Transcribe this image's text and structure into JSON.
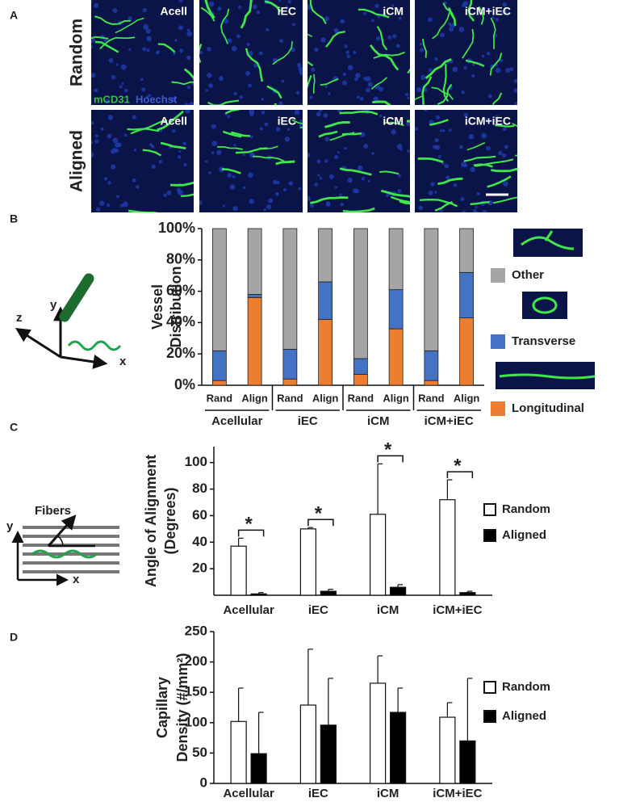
{
  "panel_labels": [
    "A",
    "B",
    "C",
    "D"
  ],
  "images": {
    "row_labels": [
      "Random",
      "Aligned"
    ],
    "column_labels": [
      "Acell",
      "iEC",
      "iCM",
      "iCM+iEC"
    ],
    "stain": [
      "mCD31",
      "Hoechst"
    ]
  },
  "diagrams": {
    "b_axes": [
      "x",
      "y",
      "z"
    ],
    "c_fibers": "Fibers",
    "c_axes": [
      "x",
      "y"
    ]
  },
  "chart_data": [
    {
      "type": "stacked_bar",
      "y_label": [
        "Vessel",
        "Distribution"
      ],
      "categories": [
        "Rand",
        "Align",
        "Rand",
        "Align",
        "Rand",
        "Align",
        "Rand",
        "Align"
      ],
      "groups": [
        "Acellular",
        "iEC",
        "iCM",
        "iCM+iEC"
      ],
      "series": [
        {
          "name": "Longitudinal",
          "color": "#ed7d31",
          "values": [
            3,
            56,
            4,
            42,
            7,
            36,
            3,
            43
          ]
        },
        {
          "name": "Transverse",
          "color": "#4472c4",
          "values": [
            19,
            2,
            19,
            24,
            10,
            25,
            19,
            29
          ]
        },
        {
          "name": "Other",
          "color": "#a5a5a5",
          "values": [
            78,
            42,
            77,
            34,
            83,
            39,
            78,
            28
          ]
        }
      ],
      "ylim": [
        0,
        100
      ],
      "yticks": [
        {
          "value": 0,
          "label": "0%"
        },
        {
          "value": 20,
          "label": "20%"
        },
        {
          "value": 40,
          "label": "40%"
        },
        {
          "value": 60,
          "label": "60%"
        },
        {
          "value": 80,
          "label": "80%"
        },
        {
          "value": 100,
          "label": "100%"
        }
      ]
    },
    {
      "type": "grouped_bar",
      "y_label": [
        "Angle of Alignment",
        "(Degrees)"
      ],
      "categories": [
        "Acellular",
        "iEC",
        "iCM",
        "iCM+iEC"
      ],
      "series": [
        {
          "name": "Random",
          "color": "#ffffff",
          "values": [
            37,
            50,
            61,
            72
          ],
          "errors": [
            6,
            1,
            38,
            15
          ]
        },
        {
          "name": "Aligned",
          "color": "#000000",
          "values": [
            1,
            3,
            6,
            2
          ],
          "errors": [
            1,
            1.5,
            2,
            1
          ]
        }
      ],
      "annotations": [
        "*",
        "*",
        "*",
        "*"
      ],
      "ylim": [
        0,
        112
      ],
      "yticks": [
        20,
        40,
        60,
        80,
        100
      ]
    },
    {
      "type": "grouped_bar",
      "y_label": [
        "Capillary",
        "Density (#/mm²)"
      ],
      "categories": [
        "Acellular",
        "iEC",
        "iCM",
        "iCM+iEC"
      ],
      "series": [
        {
          "name": "Random",
          "color": "#ffffff",
          "values": [
            102,
            129,
            165,
            109
          ],
          "errors": [
            55,
            92,
            45,
            24
          ]
        },
        {
          "name": "Aligned",
          "color": "#000000",
          "values": [
            49,
            96,
            117,
            70
          ],
          "errors": [
            68,
            77,
            40,
            103
          ]
        }
      ],
      "ylim": [
        0,
        250
      ],
      "yticks": [
        0,
        50,
        100,
        150,
        200,
        250
      ]
    }
  ]
}
